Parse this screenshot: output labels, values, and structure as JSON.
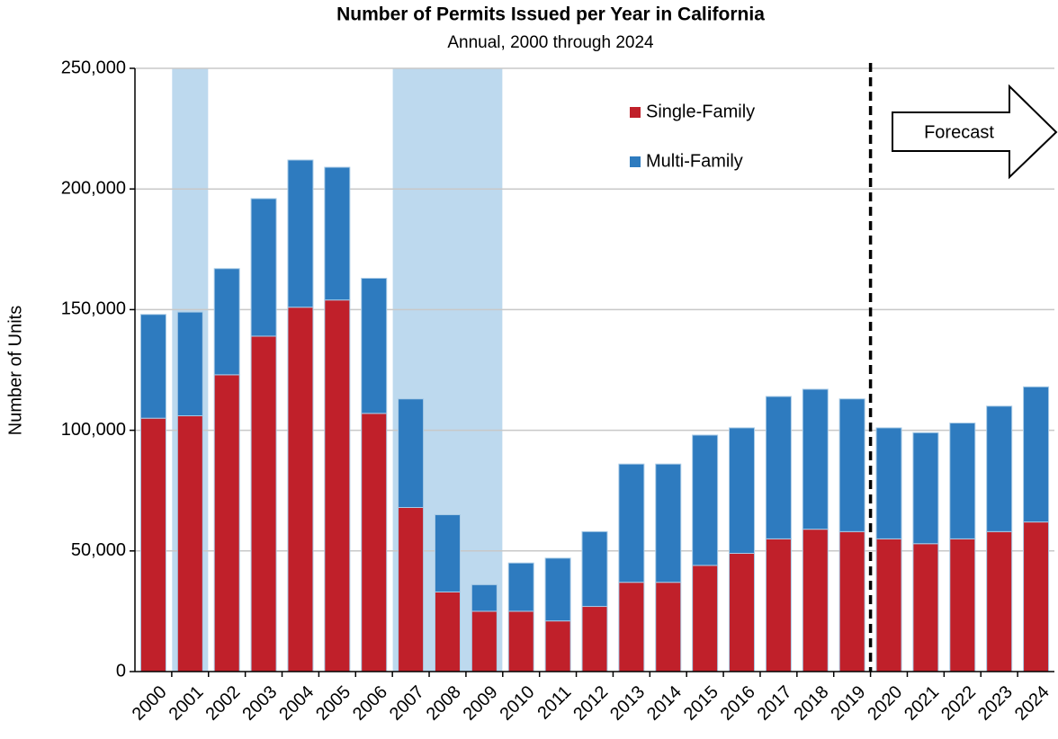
{
  "chart_data": {
    "type": "stacked-bar",
    "title": "Number of Permits Issued per Year in California",
    "subtitle": "Annual, 2000 through 2024",
    "y_label": "Number of Units",
    "annotation": "Forecast",
    "forecast_start": "2020",
    "shaded": [
      {
        "from": "2001",
        "to": "2001"
      },
      {
        "from": "2007",
        "to": "2009"
      }
    ],
    "categories": [
      "2000",
      "2001",
      "2002",
      "2003",
      "2004",
      "2005",
      "2006",
      "2007",
      "2008",
      "2009",
      "2010",
      "2011",
      "2012",
      "2013",
      "2014",
      "2015",
      "2016",
      "2017",
      "2018",
      "2019",
      "2020",
      "2021",
      "2022",
      "2023",
      "2024"
    ],
    "series": [
      {
        "name": "Single-Family",
        "color": "#c0202a",
        "values": [
          105000,
          106000,
          123000,
          139000,
          151000,
          154000,
          107000,
          68000,
          33000,
          25000,
          25000,
          21000,
          27000,
          37000,
          37000,
          44000,
          49000,
          55000,
          59000,
          58000,
          55000,
          53000,
          55000,
          58000,
          62000
        ]
      },
      {
        "name": "Multi-Family",
        "color": "#2e7bbf",
        "values": [
          43000,
          43000,
          44000,
          57000,
          61000,
          55000,
          56000,
          45000,
          32000,
          11000,
          20000,
          26000,
          31000,
          49000,
          49000,
          54000,
          52000,
          59000,
          58000,
          55000,
          46000,
          46000,
          48000,
          52000,
          56000
        ]
      }
    ],
    "ylim": [
      0,
      250000
    ],
    "yticks": [
      0,
      {
        "value": 50000,
        "label": "50,000"
      },
      {
        "value": 100000,
        "label": "100,000"
      },
      {
        "value": 150000,
        "label": "150,000"
      },
      {
        "value": 200000,
        "label": "200,000"
      },
      {
        "value": 250000,
        "label": "250,000"
      }
    ],
    "grid": true
  }
}
